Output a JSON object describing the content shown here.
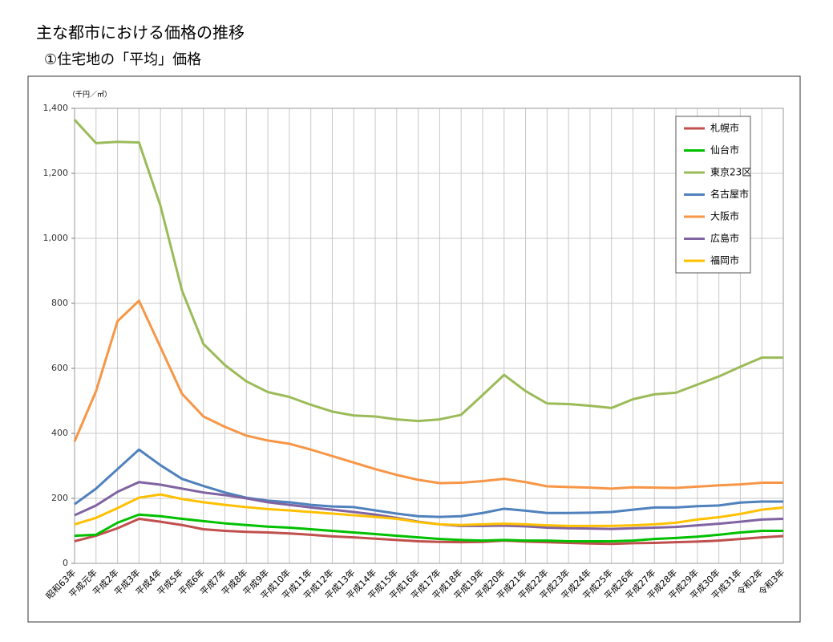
{
  "chart_data": {
    "type": "line",
    "title": "主な都市における価格の推移",
    "subtitle": "①住宅地の「平均」価格",
    "y_unit_label": "（千円／㎡）",
    "categories": [
      "昭和63年",
      "平成元年",
      "平成2年",
      "平成3年",
      "平成4年",
      "平成5年",
      "平成6年",
      "平成7年",
      "平成8年",
      "平成9年",
      "平成10年",
      "平成11年",
      "平成12年",
      "平成13年",
      "平成14年",
      "平成15年",
      "平成16年",
      "平成17年",
      "平成18年",
      "平成19年",
      "平成20年",
      "平成21年",
      "平成22年",
      "平成23年",
      "平成24年",
      "平成25年",
      "平成26年",
      "平成27年",
      "平成28年",
      "平成29年",
      "平成30年",
      "平成31年",
      "令和2年",
      "令和3年"
    ],
    "series": [
      {
        "name": "札幌市",
        "color": "#c0504d",
        "values": [
          68,
          85,
          108,
          137,
          128,
          118,
          105,
          100,
          97,
          95,
          92,
          88,
          83,
          80,
          76,
          72,
          68,
          66,
          65,
          66,
          70,
          67,
          65,
          63,
          61,
          60,
          62,
          63,
          65,
          67,
          70,
          75,
          80,
          84
        ]
      },
      {
        "name": "仙台市",
        "color": "#00c000",
        "values": [
          85,
          88,
          125,
          150,
          145,
          137,
          130,
          123,
          118,
          113,
          110,
          105,
          100,
          95,
          90,
          85,
          80,
          75,
          72,
          70,
          72,
          70,
          70,
          68,
          68,
          68,
          70,
          75,
          78,
          82,
          88,
          95,
          100,
          100
        ]
      },
      {
        "name": "東京23区",
        "color": "#9bbb59",
        "values": [
          1365,
          1293,
          1297,
          1295,
          1100,
          840,
          675,
          610,
          560,
          527,
          512,
          488,
          467,
          455,
          452,
          443,
          438,
          443,
          457,
          518,
          580,
          530,
          492,
          490,
          485,
          478,
          505,
          520,
          525,
          550,
          575,
          605,
          633,
          633
        ]
      },
      {
        "name": "名古屋市",
        "color": "#4f81bd",
        "values": [
          182,
          230,
          290,
          350,
          302,
          260,
          238,
          218,
          202,
          193,
          188,
          180,
          175,
          173,
          163,
          153,
          145,
          143,
          145,
          155,
          168,
          162,
          155,
          155,
          156,
          158,
          165,
          172,
          172,
          176,
          178,
          187,
          190,
          190
        ]
      },
      {
        "name": "大阪市",
        "color": "#f79646",
        "values": [
          375,
          530,
          745,
          808,
          665,
          522,
          452,
          420,
          393,
          378,
          368,
          350,
          330,
          310,
          290,
          272,
          257,
          247,
          248,
          253,
          260,
          250,
          237,
          235,
          233,
          230,
          234,
          233,
          232,
          236,
          240,
          243,
          248,
          248
        ]
      },
      {
        "name": "広島市",
        "color": "#8064a2",
        "values": [
          148,
          178,
          220,
          250,
          242,
          230,
          218,
          210,
          200,
          188,
          180,
          172,
          165,
          158,
          150,
          140,
          128,
          120,
          115,
          115,
          116,
          114,
          110,
          108,
          107,
          106,
          108,
          110,
          112,
          117,
          122,
          128,
          135,
          137
        ]
      },
      {
        "name": "福岡市",
        "color": "#ffc000",
        "values": [
          120,
          140,
          170,
          202,
          212,
          198,
          188,
          180,
          173,
          167,
          163,
          158,
          153,
          148,
          143,
          137,
          127,
          120,
          118,
          120,
          122,
          120,
          117,
          115,
          115,
          115,
          117,
          120,
          125,
          135,
          142,
          152,
          165,
          172
        ]
      }
    ],
    "ylim": [
      0,
      1400
    ],
    "yticks": [
      0,
      200,
      400,
      600,
      800,
      {
        "value": 1000,
        "label": "1,000"
      },
      {
        "value": 1200,
        "label": "1,200"
      },
      {
        "value": 1400,
        "label": "1,400"
      }
    ],
    "grid": true,
    "legend_position": "upper right"
  }
}
